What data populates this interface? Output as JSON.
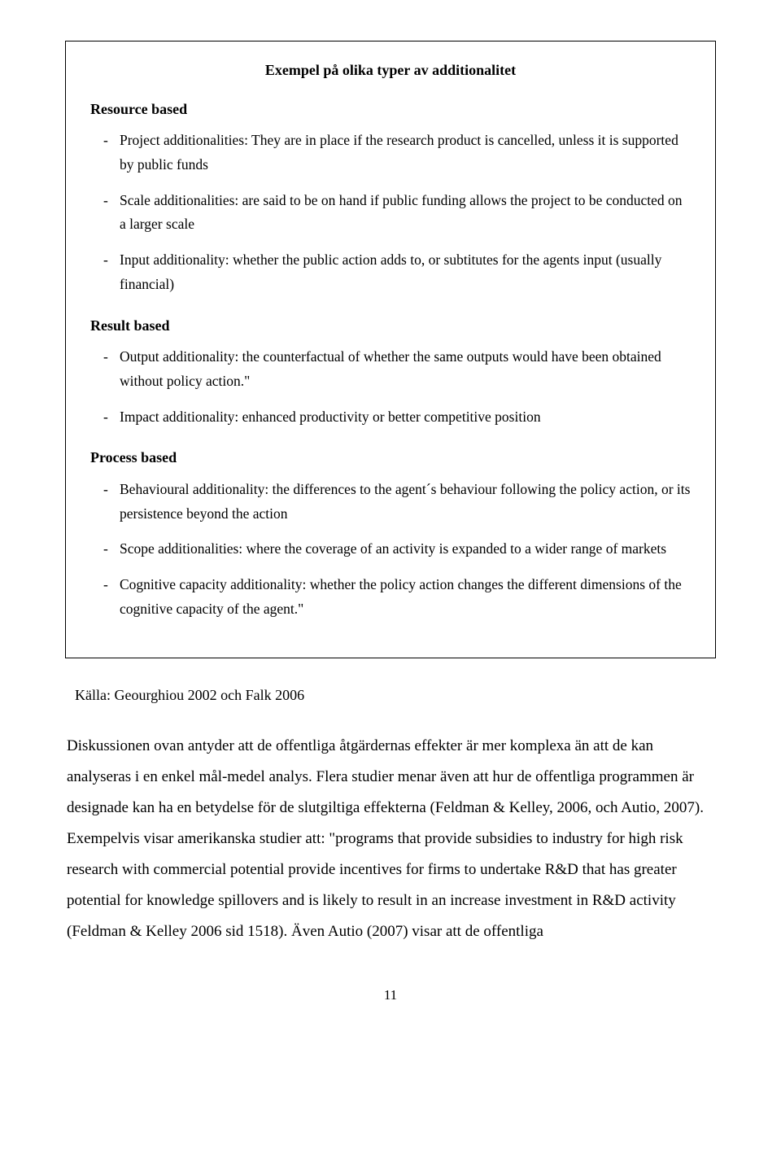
{
  "box": {
    "title": "Exempel på olika typer av additionalitet",
    "sections": [
      {
        "heading": "Resource based",
        "items": [
          "Project additionalities: They are in place if the research product is cancelled, unless it is supported by public funds",
          "Scale additionalities: are said to be on hand if public funding allows the project to be conducted on a larger scale",
          "Input additionality: whether the public action adds to, or subtitutes for the agents input (usually financial)"
        ]
      },
      {
        "heading": "Result based",
        "items": [
          "Output additionality: the counterfactual of whether the same outputs would have been obtained without policy action.\"",
          "Impact additionality: enhanced productivity or better competitive position"
        ]
      },
      {
        "heading": "Process based",
        "items": [
          "Behavioural additionality: the differences to the agent´s behaviour following the policy action, or its persistence beyond the action",
          "Scope additionalities: where the coverage of an activity is expanded to a wider range of markets",
          "Cognitive capacity additionality: whether the policy action changes the different dimensions of the cognitive capacity of the agent.\""
        ]
      }
    ]
  },
  "source": "Källa: Geourghiou 2002 och Falk 2006",
  "body": "Diskussionen ovan antyder att de offentliga åtgärdernas effekter är mer komplexa än att de kan analyseras i en enkel mål-medel analys. Flera studier menar även att hur de offentliga programmen är designade kan ha en betydelse för de slutgiltiga effekterna (Feldman & Kelley, 2006, och Autio, 2007). Exempelvis visar amerikanska studier att: \"programs that provide subsidies to industry for high risk research with commercial potential provide incentives for firms to undertake R&D that has greater potential for knowledge spillovers and is likely to result in an increase investment in R&D activity (Feldman & Kelley 2006 sid 1518). Även Autio (2007) visar att de offentliga",
  "page_number": "11",
  "colors": {
    "text": "#000000",
    "background": "#ffffff",
    "border": "#000000"
  },
  "typography": {
    "body_font": "Garamond, Georgia, serif",
    "base_size": 18,
    "heading_weight": "bold"
  }
}
